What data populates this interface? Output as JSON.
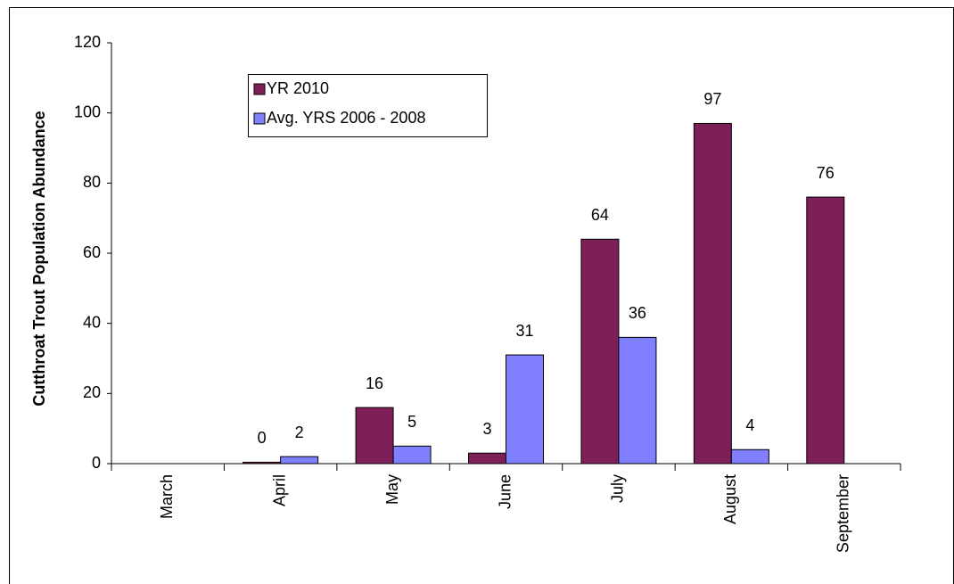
{
  "chart_data": {
    "type": "bar",
    "y_label": "Cutthroat Trout Population Abundance",
    "categories": [
      "March",
      "April",
      "May",
      "June",
      "July",
      "August",
      "September"
    ],
    "series": [
      {
        "name": "YR 2010",
        "color": "#7f1f5a",
        "values": [
          null,
          0.4,
          16,
          3,
          64,
          97,
          76
        ],
        "value_labels": [
          null,
          "0",
          "16",
          "3",
          "64",
          "97",
          "76"
        ]
      },
      {
        "name": "Avg. YRS 2006 - 2008",
        "color": "#8080ff",
        "values": [
          null,
          2,
          5,
          31,
          36,
          4,
          null
        ]
      }
    ],
    "ylim": [
      0,
      120
    ],
    "yticks": [
      0,
      20,
      40,
      60,
      80,
      100,
      120
    ],
    "grid": false
  }
}
